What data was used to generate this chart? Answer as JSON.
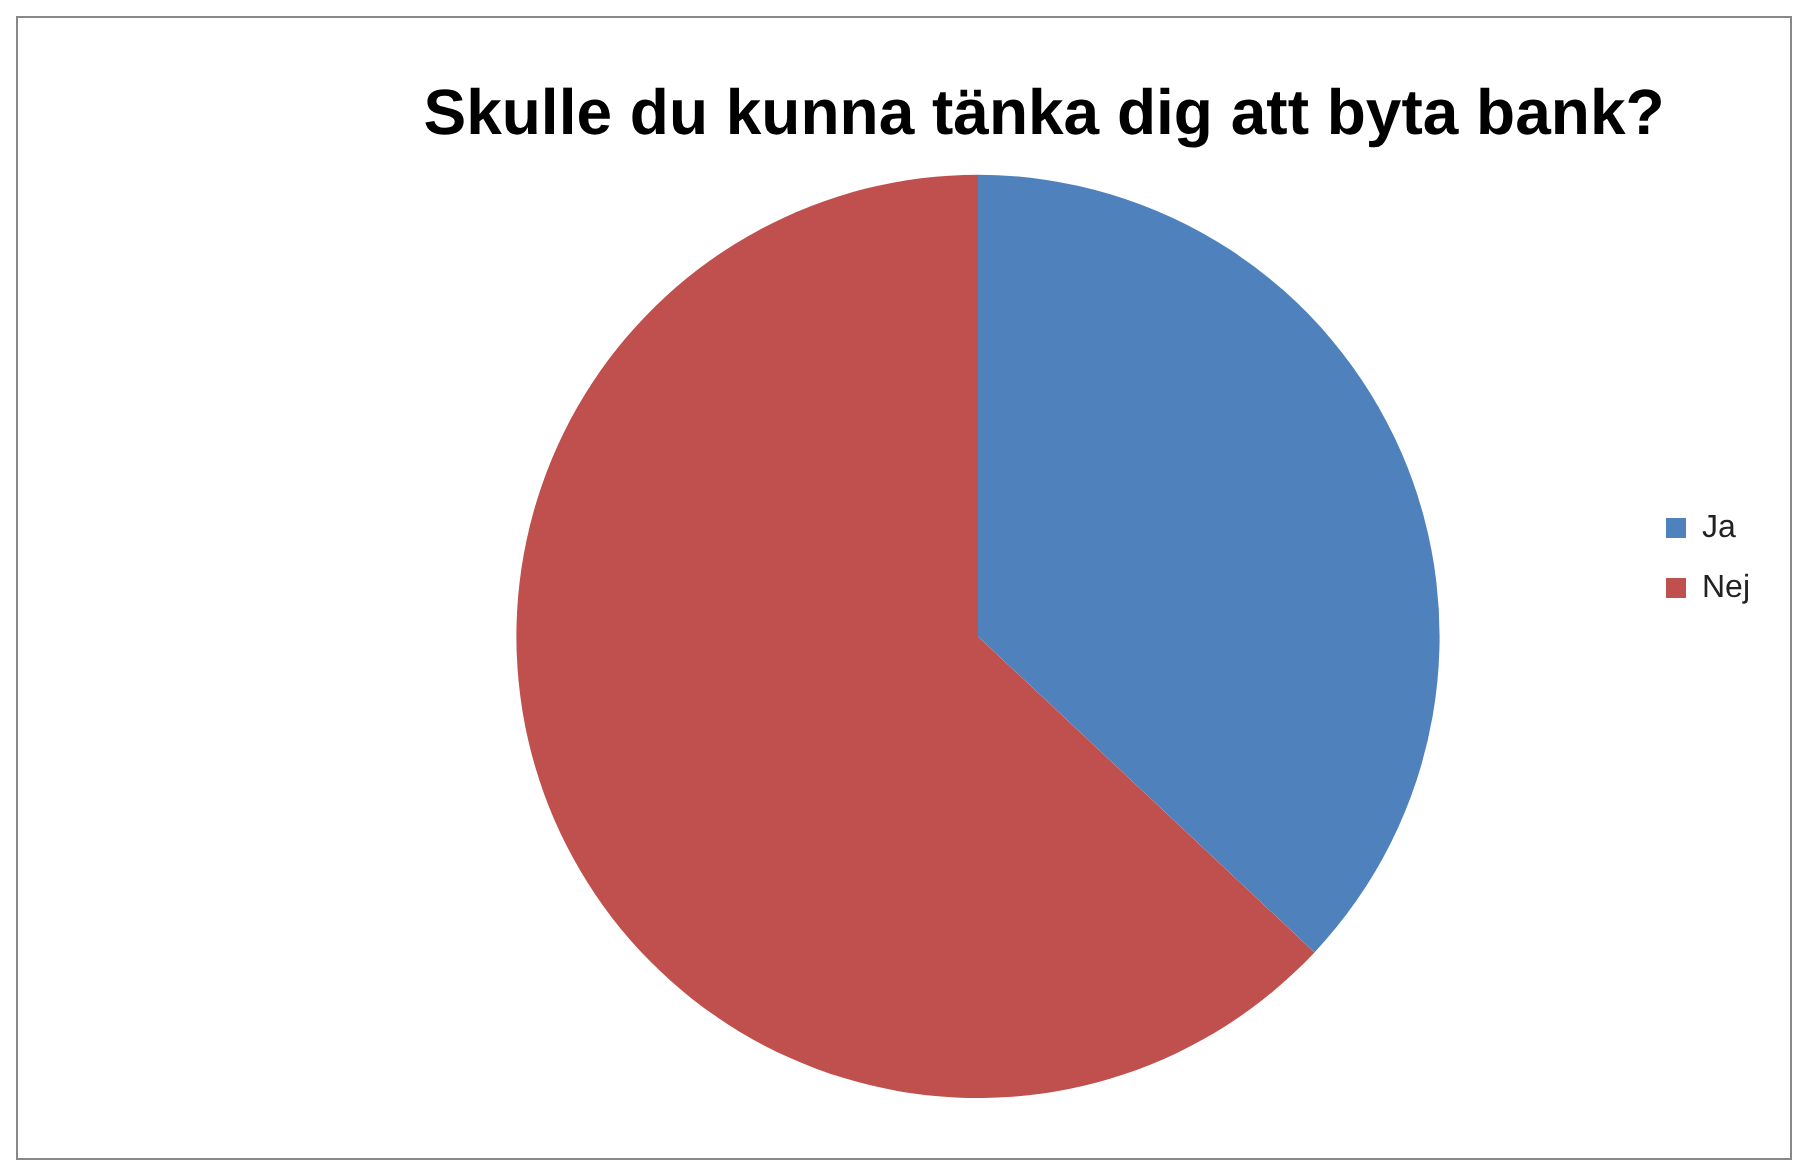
{
  "chart_data": {
    "type": "pie",
    "title": "Skulle du kunna tänka dig att byta bank?",
    "categories": [
      "Ja",
      "Nej"
    ],
    "values": [
      37,
      63
    ],
    "colors": [
      "#4f81bd",
      "#c0504d"
    ],
    "legend": "right"
  }
}
